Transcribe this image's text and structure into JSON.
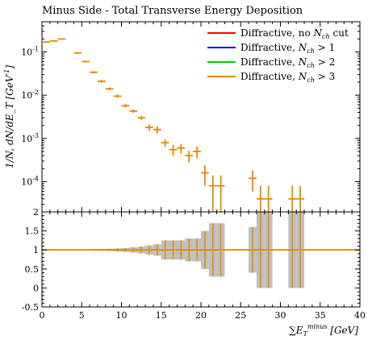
{
  "chart_data": {
    "type": "line",
    "title": "Minus Side - Total Transverse Energy Deposition",
    "top_panel": {
      "ylabel": "1/N, dN/dE_T [GeV^{-1}]",
      "ylim": [
        2e-05,
        0.5
      ],
      "yscale": "log",
      "yticks": [
        {
          "value": 0.1,
          "label": "10^{-1}"
        },
        {
          "value": 0.01,
          "label": "10^{-2}"
        },
        {
          "value": 0.001,
          "label": "10^{-3}"
        },
        {
          "value": 0.0001,
          "label": "10^{-4}"
        }
      ]
    },
    "ratio_panel": {
      "ylim": [
        -0.5,
        2
      ],
      "yticks": [
        "-0.5",
        "0",
        "0.5",
        "1",
        "1.5",
        "2"
      ]
    },
    "x": {
      "xlabel": "∑E_T^minus [GeV]",
      "xlim": [
        0,
        40
      ],
      "xticks": [
        "0",
        "5",
        "10",
        "15",
        "20",
        "25",
        "30",
        "35",
        "40"
      ]
    },
    "legend": {
      "position": "top-right",
      "entries": [
        {
          "label": "Diffractive, no N_ch cut",
          "color": "#ff0000"
        },
        {
          "label": "Diffractive, N_ch > 1",
          "color": "#0000ff"
        },
        {
          "label": "Diffractive, N_ch > 2",
          "color": "#00cc00"
        },
        {
          "label": "Diffractive, N_ch > 3",
          "color": "#e08a00"
        }
      ]
    },
    "series": [
      {
        "name": "Diffractive, N_ch > 3",
        "color": "#e08a00",
        "bins": [
          {
            "x0": 0,
            "x1": 1,
            "y": 0.17,
            "err": 0
          },
          {
            "x0": 1,
            "x1": 2,
            "y": 0.18,
            "err": 0
          },
          {
            "x0": 2,
            "x1": 3,
            "y": 0.2,
            "err": 0
          },
          {
            "x0": 4,
            "x1": 5,
            "y": 0.095,
            "err": 0.004
          },
          {
            "x0": 5,
            "x1": 6,
            "y": 0.06,
            "err": 0.003
          },
          {
            "x0": 6,
            "x1": 7,
            "y": 0.034,
            "err": 0.002
          },
          {
            "x0": 7,
            "x1": 8,
            "y": 0.021,
            "err": 0.0015
          },
          {
            "x0": 8,
            "x1": 9,
            "y": 0.014,
            "err": 0.001
          },
          {
            "x0": 9,
            "x1": 10,
            "y": 0.0095,
            "err": 0.0008
          },
          {
            "x0": 10,
            "x1": 11,
            "y": 0.0057,
            "err": 0.0005
          },
          {
            "x0": 11,
            "x1": 12,
            "y": 0.0043,
            "err": 0.0004
          },
          {
            "x0": 12,
            "x1": 13,
            "y": 0.003,
            "err": 0.0003
          },
          {
            "x0": 13,
            "x1": 14,
            "y": 0.0018,
            "err": 0.0003
          },
          {
            "x0": 14,
            "x1": 15,
            "y": 0.0016,
            "err": 0.0003
          },
          {
            "x0": 15,
            "x1": 16,
            "y": 0.0008,
            "err": 0.00015
          },
          {
            "x0": 16,
            "x1": 17,
            "y": 0.00055,
            "err": 0.00015
          },
          {
            "x0": 17,
            "x1": 18,
            "y": 0.0006,
            "err": 0.00015
          },
          {
            "x0": 18,
            "x1": 19,
            "y": 0.0004,
            "err": 0.00012
          },
          {
            "x0": 19,
            "x1": 20,
            "y": 0.0005,
            "err": 0.00015
          },
          {
            "x0": 20,
            "x1": 21,
            "y": 0.00016,
            "err": 8e-05
          },
          {
            "x0": 21,
            "x1": 22,
            "y": 8e-05,
            "err": 6e-05
          },
          {
            "x0": 22,
            "x1": 23,
            "y": 8e-05,
            "err": 6e-05
          },
          {
            "x0": 26,
            "x1": 27,
            "y": 0.00012,
            "err": 6e-05
          },
          {
            "x0": 27,
            "x1": 28,
            "y": 4e-05,
            "err": 4e-05
          },
          {
            "x0": 28,
            "x1": 29,
            "y": 4e-05,
            "err": 4e-05
          },
          {
            "x0": 31,
            "x1": 32,
            "y": 4e-05,
            "err": 4e-05
          },
          {
            "x0": 32,
            "x1": 33,
            "y": 4e-05,
            "err": 4e-05
          }
        ]
      }
    ],
    "ratio_band": {
      "color": "#c0c0c0",
      "bins": [
        {
          "x0": 4,
          "x1": 5,
          "half": 0.01
        },
        {
          "x0": 5,
          "x1": 6,
          "half": 0.015
        },
        {
          "x0": 6,
          "x1": 7,
          "half": 0.02
        },
        {
          "x0": 7,
          "x1": 8,
          "half": 0.025
        },
        {
          "x0": 8,
          "x1": 9,
          "half": 0.03
        },
        {
          "x0": 9,
          "x1": 10,
          "half": 0.04
        },
        {
          "x0": 10,
          "x1": 11,
          "half": 0.05
        },
        {
          "x0": 11,
          "x1": 12,
          "half": 0.07
        },
        {
          "x0": 12,
          "x1": 13,
          "half": 0.09
        },
        {
          "x0": 13,
          "x1": 14,
          "half": 0.12
        },
        {
          "x0": 14,
          "x1": 15,
          "half": 0.15
        },
        {
          "x0": 15,
          "x1": 16,
          "half": 0.25
        },
        {
          "x0": 16,
          "x1": 17,
          "half": 0.25
        },
        {
          "x0": 17,
          "x1": 18,
          "half": 0.25
        },
        {
          "x0": 18,
          "x1": 19,
          "half": 0.3
        },
        {
          "x0": 19,
          "x1": 20,
          "half": 0.3
        },
        {
          "x0": 20,
          "x1": 21,
          "half": 0.5
        },
        {
          "x0": 21,
          "x1": 22,
          "half": 0.7
        },
        {
          "x0": 22,
          "x1": 23,
          "half": 0.7
        },
        {
          "x0": 26,
          "x1": 27,
          "half": 0.6
        },
        {
          "x0": 27,
          "x1": 28,
          "half": 1.0
        },
        {
          "x0": 28,
          "x1": 29,
          "half": 1.0
        },
        {
          "x0": 31,
          "x1": 32,
          "half": 1.0
        },
        {
          "x0": 32,
          "x1": 33,
          "half": 1.0
        }
      ]
    }
  }
}
